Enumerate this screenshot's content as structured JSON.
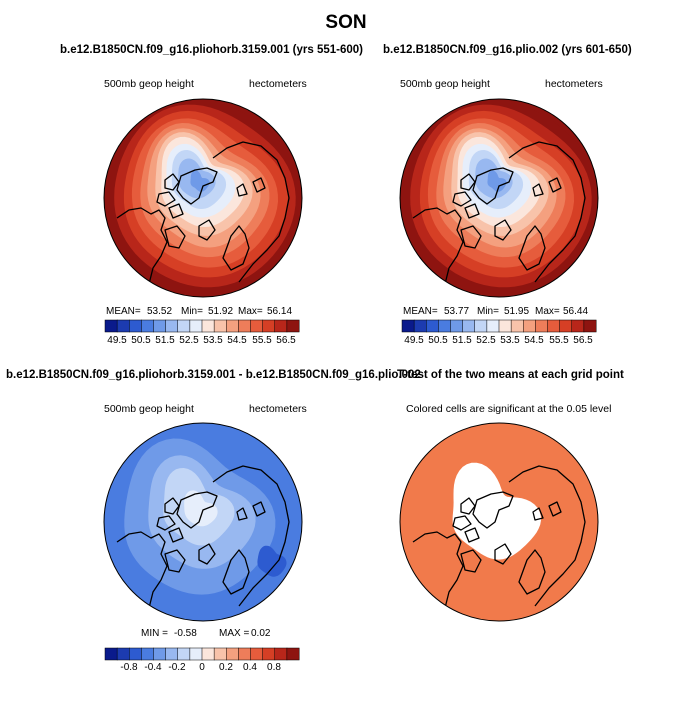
{
  "page": {
    "title": "SON"
  },
  "panels": [
    {
      "title": "b.e12.B1850CN.f09_g16.pliohorb.3159.001 (yrs 551-600)",
      "left_label": "500mb geop height",
      "right_label": "hectometers",
      "stats": {
        "mean_label": "MEAN=",
        "mean": "53.52",
        "min_label": "Min=",
        "min": "51.92",
        "max_label": "Max=",
        "max": "56.14"
      },
      "colorbar_ticks": [
        "49.5",
        "50.5",
        "51.5",
        "52.5",
        "53.5",
        "54.5",
        "55.5",
        "56.5"
      ]
    },
    {
      "title": "b.e12.B1850CN.f09_g16.plio.002 (yrs 601-650)",
      "left_label": "500mb geop height",
      "right_label": "hectometers",
      "stats": {
        "mean_label": "MEAN=",
        "mean": "53.77",
        "min_label": "Min=",
        "min": "51.95",
        "max_label": "Max=",
        "max": "56.44"
      },
      "colorbar_ticks": [
        "49.5",
        "50.5",
        "51.5",
        "52.5",
        "53.5",
        "54.5",
        "55.5",
        "56.5"
      ]
    },
    {
      "title": "b.e12.B1850CN.f09_g16.pliohorb.3159.001 - b.e12.B1850CN.f09_g16.plio.002",
      "left_label": "500mb geop height",
      "right_label": "hectometers",
      "stats": {
        "min_label": "MIN =",
        "min": "-0.58",
        "max_label": "MAX =",
        "max": "0.02"
      },
      "colorbar_ticks": [
        "-0.8",
        "-0.4",
        "-0.2",
        "0",
        "0.2",
        "0.4",
        "0.8"
      ]
    },
    {
      "title": "T-test of the two means at each grid point",
      "caption": "Colored cells are significant at the 0.05 level"
    }
  ],
  "colors": {
    "abs_scale": [
      "#0a1a8c",
      "#1c3bb0",
      "#2d5bd0",
      "#4a7ce0",
      "#6f9ae8",
      "#98b8f0",
      "#c2d6f6",
      "#e6eefb",
      "#fbe6dc",
      "#f8c3aa",
      "#f4a07f",
      "#ee7d5a",
      "#e65c3c",
      "#d63f25",
      "#b8261a",
      "#8e1410"
    ],
    "diff_scale": [
      "#0a1a8c",
      "#1c3bb0",
      "#2d5bd0",
      "#4a7ce0",
      "#6f9ae8",
      "#98b8f0",
      "#c2d6f6",
      "#e6eefb",
      "#fbe6dc",
      "#f8c3aa",
      "#f4a07f",
      "#ee7d5a",
      "#e65c3c",
      "#d63f25",
      "#b8261a",
      "#8e1410"
    ],
    "significant": "#f17a4b",
    "coast": "#000000"
  }
}
